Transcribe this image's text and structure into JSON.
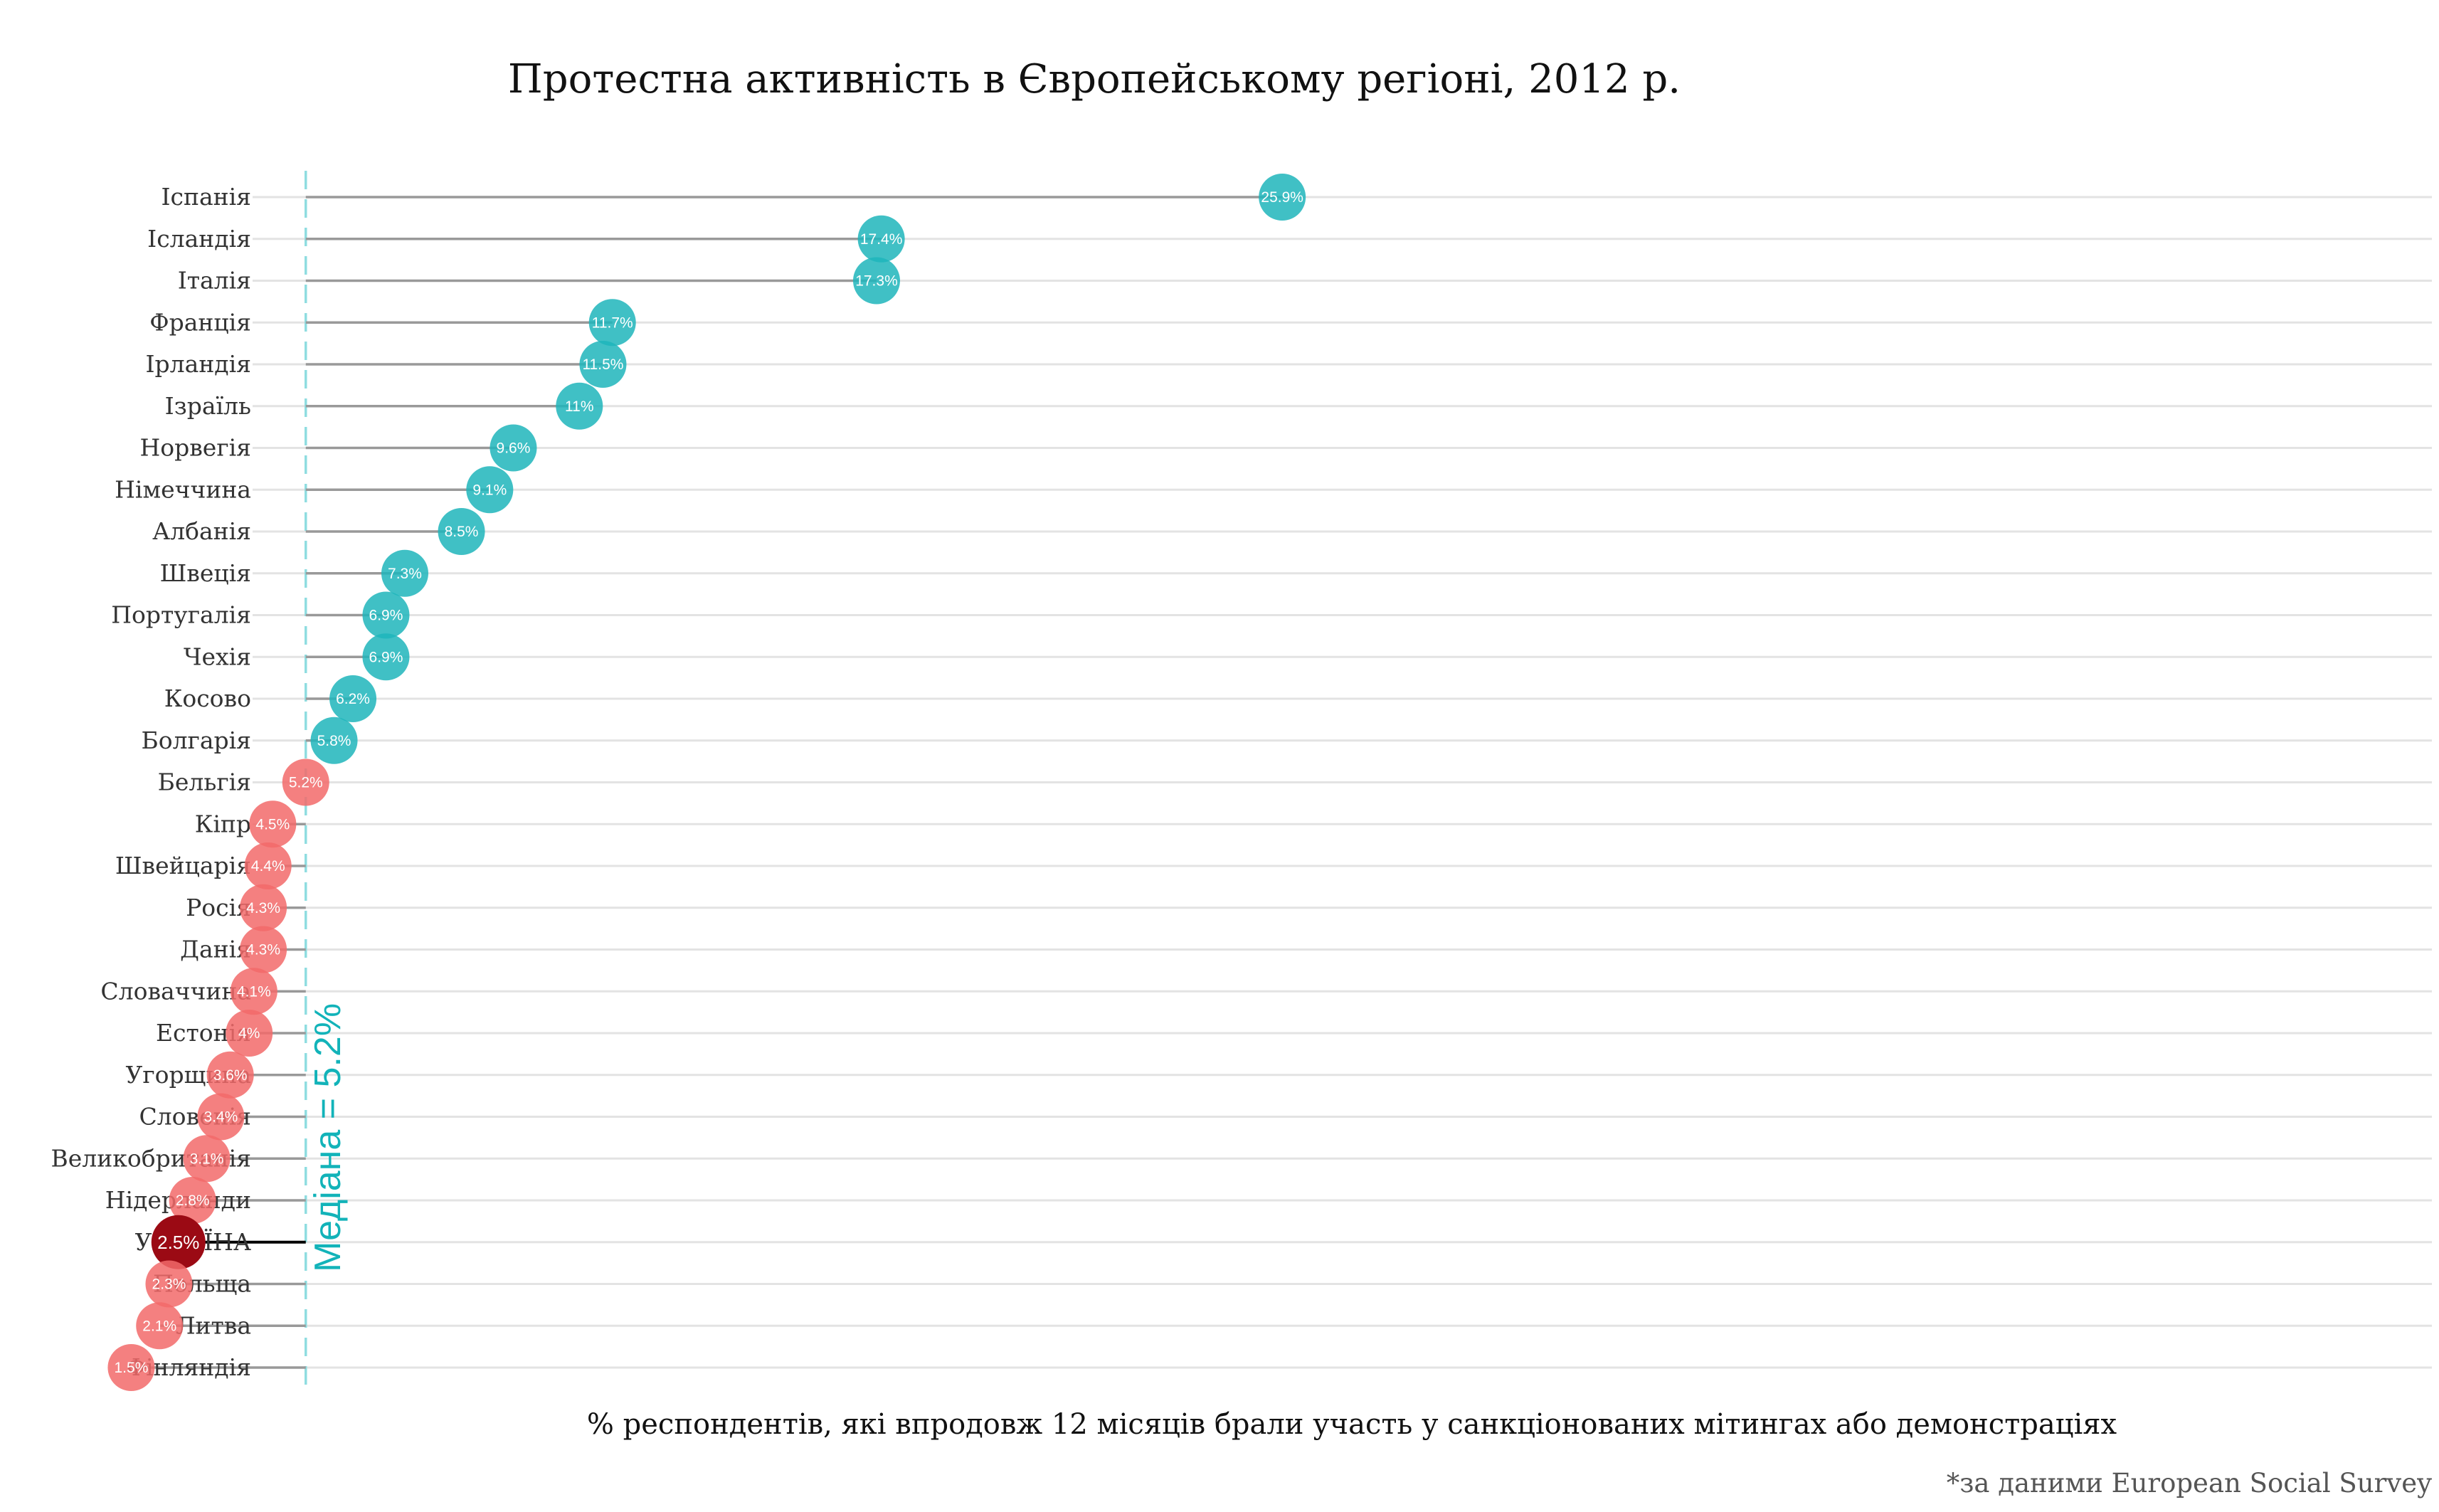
{
  "chart_data": {
    "type": "lollipop",
    "title": "Протестна активність в Європейському регіоні, 2012 р.",
    "xlabel": "% респондентів, які впродовж 12 місяців брали участь у санкціонованих мітингах або демонстраціях",
    "caption": "*за даними European Social Survey",
    "median": 5.2,
    "median_label": "Медіана = 5.2%",
    "highlight": "УКРАЇНА",
    "colors": {
      "above_median": "#1fb5bb",
      "below_median": "#f26a6a",
      "highlight": "#9b0a14",
      "median_line": "#8fdde0",
      "stem": "#999999",
      "highlight_stem": "#000000",
      "grid": "#e3e3e3"
    },
    "categories": [
      "Іспанія",
      "Ісландія",
      "Італія",
      "Франція",
      "Ірландія",
      "Ізраїль",
      "Норвегія",
      "Німеччина",
      "Албанія",
      "Швеція",
      "Португалія",
      "Чехія",
      "Косово",
      "Болгарія",
      "Бельгія",
      "Кіпр",
      "Швейцарія",
      "Росія",
      "Данія",
      "Словаччина",
      "Естонія",
      "Угорщина",
      "Словенія",
      "Великобританія",
      "Нідерланди",
      "УКРАЇНА",
      "Польща",
      "Литва",
      "Фінляндія"
    ],
    "values": [
      25.9,
      17.4,
      17.3,
      11.7,
      11.5,
      11,
      9.6,
      9.1,
      8.5,
      7.3,
      6.9,
      6.9,
      6.2,
      5.8,
      5.2,
      4.5,
      4.4,
      4.3,
      4.3,
      4.1,
      4,
      3.6,
      3.4,
      3.1,
      2.8,
      2.5,
      2.3,
      2.1,
      1.5
    ],
    "value_labels": [
      "25.9%",
      "17.4%",
      "17.3%",
      "11.7%",
      "11.5%",
      "11%",
      "9.6%",
      "9.1%",
      "8.5%",
      "7.3%",
      "6.9%",
      "6.9%",
      "6.2%",
      "5.8%",
      "5.2%",
      "4.5%",
      "4.4%",
      "4.3%",
      "4.3%",
      "4.1%",
      "4%",
      "3.6%",
      "3.4%",
      "3.1%",
      "2.8%",
      "2.5%",
      "2.3%",
      "2.1%",
      "1.5%"
    ],
    "xlim": [
      0,
      27
    ],
    "grid": true,
    "legend": "none"
  }
}
